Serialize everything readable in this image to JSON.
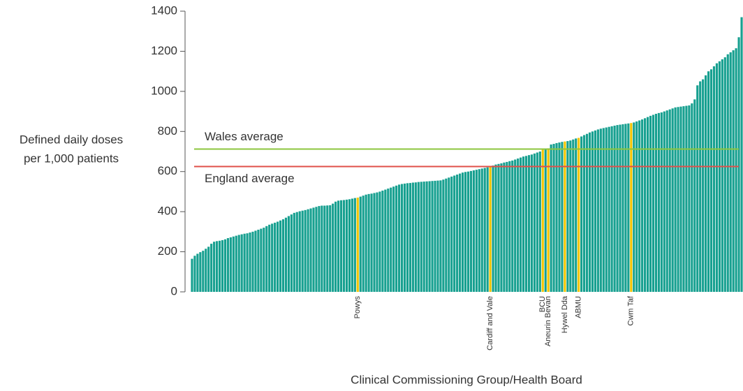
{
  "chart_data": {
    "type": "bar",
    "ylabel": [
      "Defined daily doses",
      "per 1,000 patients"
    ],
    "xlabel": "Clinical Commissioning Group/Health Board",
    "color": "#17a090",
    "highlight_color": "#f2c500",
    "ylim": [
      0,
      1400
    ],
    "yticks": [
      0,
      200,
      400,
      600,
      800,
      1000,
      1200,
      1400
    ],
    "reference_lines": [
      {
        "label": "Wales average",
        "value": 712,
        "color": "#8cc63e",
        "label_side": "above"
      },
      {
        "label": "England average",
        "value": 625,
        "color": "#e0504a",
        "label_side": "below"
      }
    ],
    "categories": [
      null,
      null,
      null,
      null,
      null,
      null,
      null,
      null,
      null,
      null,
      null,
      null,
      null,
      null,
      null,
      null,
      null,
      null,
      null,
      null,
      null,
      null,
      null,
      null,
      null,
      null,
      null,
      null,
      null,
      null,
      null,
      null,
      null,
      null,
      null,
      null,
      null,
      null,
      null,
      null,
      null,
      null,
      null,
      null,
      null,
      null,
      null,
      null,
      null,
      null,
      null,
      null,
      null,
      null,
      null,
      null,
      null,
      null,
      null,
      null,
      "Powys",
      null,
      null,
      null,
      null,
      null,
      null,
      null,
      null,
      null,
      null,
      null,
      null,
      null,
      null,
      null,
      null,
      null,
      null,
      null,
      null,
      null,
      null,
      null,
      null,
      null,
      null,
      null,
      null,
      null,
      null,
      null,
      null,
      null,
      null,
      null,
      null,
      null,
      null,
      null,
      null,
      null,
      null,
      null,
      null,
      null,
      null,
      null,
      "Cardiff and Vale",
      null,
      null,
      null,
      null,
      null,
      null,
      null,
      null,
      null,
      null,
      null,
      null,
      null,
      null,
      null,
      null,
      null,
      null,
      "BCU",
      null,
      "Aneurin Bevan",
      null,
      null,
      null,
      null,
      null,
      "Hywel Dda",
      null,
      null,
      null,
      null,
      "ABMU",
      null,
      null,
      null,
      null,
      null,
      null,
      null,
      null,
      null,
      null,
      null,
      null,
      null,
      null,
      null,
      null,
      null,
      null,
      "Cwm Taf",
      null,
      null,
      null,
      null,
      null,
      null,
      null,
      null,
      null,
      null,
      null,
      null,
      null,
      null,
      null,
      null,
      null,
      null,
      null,
      null,
      null,
      null,
      null,
      null,
      null,
      null,
      null,
      null,
      null,
      null,
      null,
      null,
      null,
      null,
      null,
      null,
      null,
      null,
      null,
      null
    ],
    "values": [
      165,
      180,
      190,
      198,
      205,
      215,
      225,
      240,
      250,
      253,
      255,
      258,
      262,
      268,
      272,
      276,
      280,
      284,
      287,
      290,
      292,
      296,
      300,
      305,
      310,
      315,
      320,
      328,
      335,
      340,
      345,
      350,
      356,
      362,
      370,
      378,
      386,
      394,
      398,
      402,
      405,
      408,
      412,
      416,
      420,
      424,
      428,
      430,
      430,
      431,
      432,
      440,
      450,
      455,
      457,
      458,
      460,
      462,
      465,
      468,
      470,
      475,
      480,
      485,
      488,
      490,
      493,
      496,
      500,
      505,
      510,
      515,
      520,
      525,
      530,
      535,
      538,
      540,
      542,
      543,
      545,
      546,
      548,
      549,
      550,
      551,
      552,
      553,
      554,
      555,
      556,
      560,
      565,
      570,
      575,
      580,
      585,
      590,
      595,
      598,
      600,
      603,
      606,
      609,
      612,
      615,
      618,
      621,
      625,
      630,
      635,
      638,
      641,
      645,
      648,
      652,
      655,
      660,
      665,
      670,
      675,
      678,
      682,
      685,
      690,
      695,
      700,
      710,
      712,
      716,
      735,
      738,
      742,
      745,
      748,
      750,
      752,
      755,
      760,
      765,
      768,
      775,
      782,
      788,
      795,
      800,
      805,
      810,
      814,
      817,
      820,
      823,
      826,
      829,
      832,
      834,
      836,
      838,
      840,
      842,
      845,
      850,
      855,
      860,
      866,
      872,
      878,
      883,
      888,
      892,
      895,
      900,
      905,
      910,
      915,
      920,
      922,
      924,
      926,
      928,
      930,
      940,
      960,
      1030,
      1050,
      1060,
      1080,
      1100,
      1110,
      1125,
      1140,
      1150,
      1160,
      1170,
      1185,
      1195,
      1205,
      1215,
      1270,
      1370
    ]
  }
}
